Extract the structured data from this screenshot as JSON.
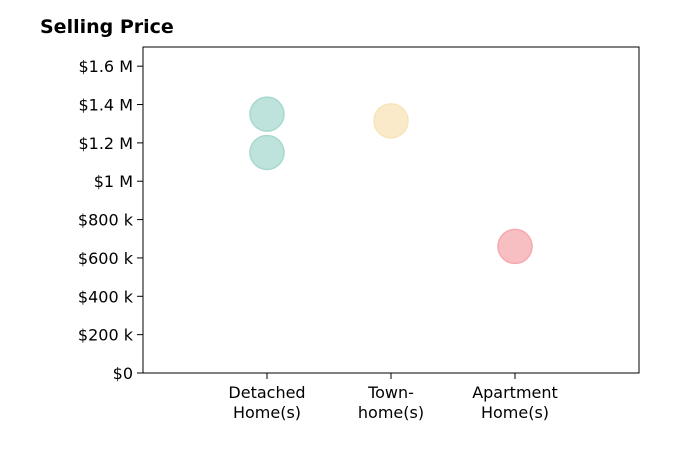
{
  "chart_data": {
    "type": "scatter",
    "title": "Selling Price",
    "xlabel": "",
    "ylabel": "",
    "categories": [
      [
        "Detached",
        "Home(s)"
      ],
      [
        "Town-",
        "home(s)"
      ],
      [
        "Apartment",
        "Home(s)"
      ]
    ],
    "points": [
      {
        "category": 0,
        "value": 1350000,
        "color": "#a8d8d0"
      },
      {
        "category": 0,
        "value": 1150000,
        "color": "#a8d8d0"
      },
      {
        "category": 1,
        "value": 1315000,
        "color": "#f8e3b8"
      },
      {
        "category": 2,
        "value": 660000,
        "color": "#f6a9ae"
      }
    ],
    "yticks": [
      {
        "value": 0,
        "label": "$0"
      },
      {
        "value": 200000,
        "label": "$200 k"
      },
      {
        "value": 400000,
        "label": "$400 k"
      },
      {
        "value": 600000,
        "label": "$600 k"
      },
      {
        "value": 800000,
        "label": "$800 k"
      },
      {
        "value": 1000000,
        "label": "$1 M"
      },
      {
        "value": 1200000,
        "label": "$1.2 M"
      },
      {
        "value": 1400000,
        "label": "$1.4 M"
      },
      {
        "value": 1600000,
        "label": "$1.6 M"
      }
    ],
    "ylim": [
      0,
      1700000
    ],
    "xlim": [
      -1,
      3
    ],
    "grid": false,
    "legend": "none"
  }
}
